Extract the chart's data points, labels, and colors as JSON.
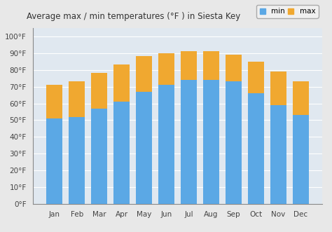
{
  "months": [
    "Jan",
    "Feb",
    "Mar",
    "Apr",
    "May",
    "Jun",
    "Jul",
    "Aug",
    "Sep",
    "Oct",
    "Nov",
    "Dec"
  ],
  "min_temps": [
    51,
    52,
    57,
    61,
    67,
    71,
    74,
    74,
    73,
    66,
    59,
    53
  ],
  "max_temps": [
    71,
    73,
    78,
    83,
    88,
    90,
    91,
    91,
    89,
    85,
    79,
    73
  ],
  "min_color": "#5ba8e5",
  "max_color": "#f0a830",
  "title": "Average max / min temperatures (°F ) in Siesta Key",
  "ylabel_ticks": [
    0,
    10,
    20,
    30,
    40,
    50,
    60,
    70,
    80,
    90,
    100
  ],
  "ylim": [
    0,
    105
  ],
  "background_color": "#e8e8e8",
  "plot_bg_color": "#e0e8f0",
  "grid_color": "#ffffff",
  "title_fontsize": 8.5,
  "tick_fontsize": 7.5,
  "legend_min_label": "min",
  "legend_max_label": "max"
}
